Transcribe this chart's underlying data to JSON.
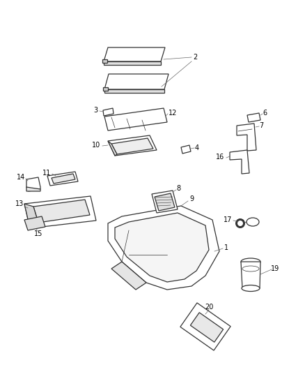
{
  "bg_color": "#ffffff",
  "line_color": "#333333",
  "label_color": "#000000",
  "fig_width": 4.38,
  "fig_height": 5.33,
  "dpi": 100
}
